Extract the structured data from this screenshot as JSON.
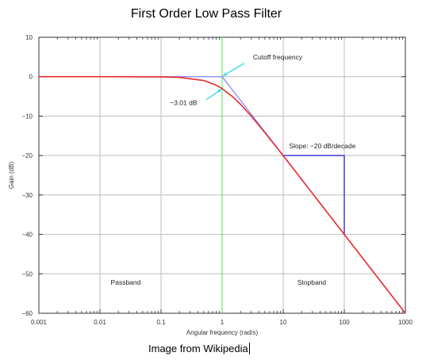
{
  "chart_data": {
    "type": "line",
    "title": "First Order Low Pass Filter",
    "xlabel": "Angular frequency (rad/s)",
    "ylabel": "Gain (dB)",
    "x_scale": "log",
    "xlim": [
      0.001,
      1000
    ],
    "ylim": [
      -60,
      10
    ],
    "x_ticks": [
      0.001,
      0.01,
      0.1,
      1,
      10,
      100,
      1000
    ],
    "x_tick_labels": [
      "0.001",
      "0.01",
      "0.1",
      "1",
      "10",
      "100",
      "1000"
    ],
    "y_ticks": [
      10,
      0,
      -10,
      -20,
      -30,
      -40,
      -50,
      -60
    ],
    "y_tick_labels": [
      "10",
      "0",
      "−10",
      "−20",
      "−30",
      "−40",
      "−50",
      "−60"
    ],
    "grid": true,
    "series": [
      {
        "color": "#e8292e",
        "x": [
          0.001,
          0.01,
          0.1,
          0.2,
          0.5,
          0.8,
          1,
          1.5,
          2,
          3,
          5,
          10,
          100,
          1000
        ],
        "y": [
          0,
          0,
          -0.04,
          -0.17,
          -0.97,
          -2.15,
          -3.01,
          -5.12,
          -6.99,
          -10.0,
          -14.15,
          -20.04,
          -40.0,
          -60.0
        ]
      },
      {
        "color": "#8080ff",
        "x": [
          0.001,
          1,
          1000
        ],
        "y": [
          0,
          0,
          -60
        ]
      }
    ],
    "cutoff_line": {
      "x": 1,
      "color": "#55dd55"
    },
    "slope_marker": {
      "x": [
        10,
        100,
        100
      ],
      "y": [
        -20,
        -20,
        -40
      ],
      "color": "#3d3ddd"
    },
    "annotations": [
      {
        "text": "Cutoff frequency",
        "x": 3.2,
        "y": 4.4
      },
      {
        "text": "−3.01 dB",
        "x": 0.14,
        "y": -7.2
      },
      {
        "text": "Slope: −20 dB/decade",
        "x": 12.5,
        "y": -18.2
      },
      {
        "text": "Passband",
        "x": 0.015,
        "y": -52.8
      },
      {
        "text": "Stopband",
        "x": 17,
        "y": -52.8
      }
    ]
  },
  "caption": "Image from Wikipedia"
}
